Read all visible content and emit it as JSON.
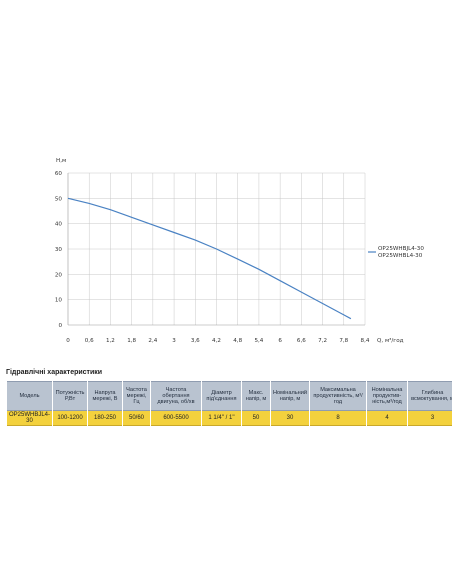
{
  "chart_data": {
    "type": "line",
    "ylabel": "H,м",
    "xlabel": "Q, м³/год",
    "ylim": [
      0,
      60
    ],
    "yticks": [
      "0",
      "10",
      "20",
      "30",
      "40",
      "50",
      "60"
    ],
    "xlim": [
      0,
      8.4
    ],
    "xticks": [
      "0",
      "0,6",
      "1,2",
      "1,8",
      "2,4",
      "3",
      "3,6",
      "4,2",
      "4,8",
      "5,4",
      "6",
      "6,6",
      "7,2",
      "7,8",
      "8,4"
    ],
    "grid": true,
    "legend": {
      "placement": "right",
      "line1": "OP25WHBJL4-30",
      "line2": "OP25WHBL4-30"
    },
    "series": [
      {
        "x": [
          0,
          0.6,
          1.2,
          1.8,
          2.4,
          3.0,
          3.6,
          4.2,
          4.8,
          5.4,
          6.0,
          6.6,
          7.2,
          7.8,
          8.0
        ],
        "y": [
          50,
          48,
          45.5,
          42.5,
          39.5,
          36.5,
          33.5,
          30,
          26,
          22,
          17.5,
          13,
          8.5,
          4,
          2.5
        ],
        "color": "#4a82c3"
      }
    ]
  },
  "table": {
    "title": "Гідравлічні характеристики",
    "headers": [
      "Модель",
      "Потужність Р,Вт",
      "Напруга мережі, В",
      "Частота мережі, Гц",
      "Частота обертання двигуна, об/хв",
      "Діаметр під'єднання",
      "Макс. напір, м",
      "Номінальний напір, м",
      "Максимальна продуктивність, м³/год",
      "Номінальна продуктив-ність,м³/год",
      "Глибина всмоктування, м"
    ],
    "rows": [
      [
        "OP25WHBJL4-30",
        "100-1200",
        "180-250",
        "50/60",
        "600-5500",
        "1 1/4'' / 1''",
        "50",
        "30",
        "8",
        "4",
        "3"
      ]
    ]
  },
  "colors": {
    "line": "#4a82c3",
    "header_bg": "#b9c3d0",
    "row_bg": "#f3d13d"
  }
}
